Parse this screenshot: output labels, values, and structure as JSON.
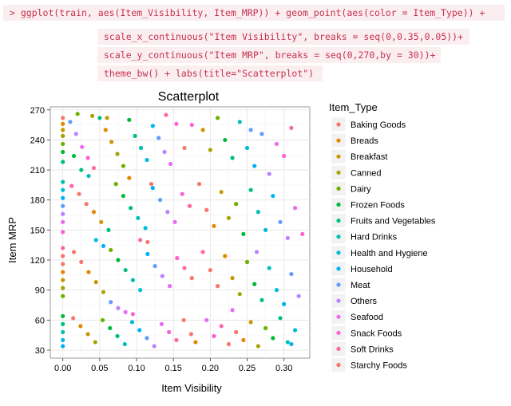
{
  "code": {
    "lines": [
      "> ggplot(train, aes(Item_Visibility, Item_MRP)) + geom_point(aes(color = Item_Type)) +",
      "scale_x_continuous(\"Item Visibility\", breaks = seq(0,0.35,0.05))+",
      "scale_y_continuous(\"Item MRP\", breaks = seq(0,270,by = 30))+",
      "theme_bw() + labs(title=\"Scatterplot\")"
    ]
  },
  "chart_data": {
    "type": "scatter",
    "title": "Scatterplot",
    "xlabel": "Item Visibility",
    "ylabel": "Item MRP",
    "xlim": [
      -0.017,
      0.335
    ],
    "ylim": [
      22,
      273
    ],
    "xticks": [
      0.0,
      0.05,
      0.1,
      0.15,
      0.2,
      0.25,
      0.3
    ],
    "xtick_labels": [
      "0.00",
      "0.05",
      "0.10",
      "0.15",
      "0.20",
      "0.25",
      "0.30"
    ],
    "yticks": [
      30,
      60,
      90,
      120,
      150,
      180,
      210,
      240,
      270
    ],
    "ytick_labels": [
      "30",
      "60",
      "90",
      "120",
      "150",
      "180",
      "210",
      "240",
      "270"
    ],
    "grid": true,
    "legend_position": "right",
    "legend_title": "Item_Type",
    "series": [
      {
        "name": "Baking Goods",
        "color": "#F8766D"
      },
      {
        "name": "Breads",
        "color": "#E58700"
      },
      {
        "name": "Breakfast",
        "color": "#C99800"
      },
      {
        "name": "Canned",
        "color": "#A3A500"
      },
      {
        "name": "Dairy",
        "color": "#6BB100"
      },
      {
        "name": "Frozen Foods",
        "color": "#00BA38"
      },
      {
        "name": "Fruits and Vegetables",
        "color": "#00BF7D"
      },
      {
        "name": "Hard Drinks",
        "color": "#00C0AF"
      },
      {
        "name": "Health and Hygiene",
        "color": "#00BCD8"
      },
      {
        "name": "Household",
        "color": "#00B0F6"
      },
      {
        "name": "Meat",
        "color": "#619CFF"
      },
      {
        "name": "Others",
        "color": "#B983FF"
      },
      {
        "name": "Seafood",
        "color": "#E76BF3"
      },
      {
        "name": "Snack Foods",
        "color": "#FD61D1"
      },
      {
        "name": "Soft Drinks",
        "color": "#FF67A4"
      },
      {
        "name": "Starchy Foods",
        "color": "#F8766D"
      }
    ],
    "points": [
      [
        0.0,
        262,
        0
      ],
      [
        0.0,
        256,
        1
      ],
      [
        0.0,
        250,
        2
      ],
      [
        0.0,
        244,
        3
      ],
      [
        0.0,
        236,
        4
      ],
      [
        0.0,
        228,
        5
      ],
      [
        0.0,
        218,
        6
      ],
      [
        0.0,
        198,
        7
      ],
      [
        0.0,
        190,
        8
      ],
      [
        0.0,
        182,
        9
      ],
      [
        0.0,
        174,
        10
      ],
      [
        0.0,
        166,
        11
      ],
      [
        0.0,
        158,
        12
      ],
      [
        0.0,
        148,
        13
      ],
      [
        0.0,
        132,
        14
      ],
      [
        0.0,
        124,
        15
      ],
      [
        0.0,
        116,
        0
      ],
      [
        0.0,
        108,
        1
      ],
      [
        0.0,
        100,
        2
      ],
      [
        0.0,
        92,
        3
      ],
      [
        0.0,
        84,
        4
      ],
      [
        0.0,
        64,
        5
      ],
      [
        0.0,
        56,
        6
      ],
      [
        0.0,
        48,
        7
      ],
      [
        0.0,
        40,
        8
      ],
      [
        0.0,
        34,
        9
      ],
      [
        0.01,
        258,
        10
      ],
      [
        0.018,
        246,
        11
      ],
      [
        0.026,
        233,
        12
      ],
      [
        0.034,
        222,
        13
      ],
      [
        0.042,
        212,
        14
      ],
      [
        0.05,
        262,
        6
      ],
      [
        0.058,
        250,
        1
      ],
      [
        0.066,
        238,
        2
      ],
      [
        0.074,
        226,
        3
      ],
      [
        0.082,
        214,
        4
      ],
      [
        0.09,
        260,
        5
      ],
      [
        0.098,
        244,
        6
      ],
      [
        0.106,
        232,
        7
      ],
      [
        0.114,
        220,
        8
      ],
      [
        0.122,
        254,
        9
      ],
      [
        0.13,
        242,
        10
      ],
      [
        0.138,
        228,
        11
      ],
      [
        0.146,
        216,
        12
      ],
      [
        0.154,
        256,
        13
      ],
      [
        0.012,
        194,
        14
      ],
      [
        0.022,
        186,
        15
      ],
      [
        0.032,
        176,
        0
      ],
      [
        0.042,
        168,
        1
      ],
      [
        0.052,
        158,
        2
      ],
      [
        0.062,
        150,
        6
      ],
      [
        0.072,
        196,
        4
      ],
      [
        0.082,
        184,
        5
      ],
      [
        0.092,
        172,
        6
      ],
      [
        0.102,
        162,
        7
      ],
      [
        0.112,
        152,
        8
      ],
      [
        0.122,
        192,
        9
      ],
      [
        0.132,
        180,
        10
      ],
      [
        0.142,
        168,
        11
      ],
      [
        0.152,
        158,
        12
      ],
      [
        0.162,
        186,
        13
      ],
      [
        0.172,
        174,
        14
      ],
      [
        0.015,
        128,
        15
      ],
      [
        0.025,
        118,
        0
      ],
      [
        0.035,
        108,
        1
      ],
      [
        0.045,
        98,
        2
      ],
      [
        0.055,
        88,
        3
      ],
      [
        0.065,
        130,
        4
      ],
      [
        0.075,
        120,
        5
      ],
      [
        0.085,
        110,
        6
      ],
      [
        0.095,
        100,
        7
      ],
      [
        0.105,
        90,
        8
      ],
      [
        0.115,
        126,
        9
      ],
      [
        0.125,
        114,
        10
      ],
      [
        0.135,
        104,
        11
      ],
      [
        0.145,
        94,
        12
      ],
      [
        0.155,
        122,
        13
      ],
      [
        0.165,
        112,
        14
      ],
      [
        0.175,
        102,
        15
      ],
      [
        0.014,
        62,
        0
      ],
      [
        0.024,
        54,
        1
      ],
      [
        0.034,
        46,
        2
      ],
      [
        0.044,
        38,
        3
      ],
      [
        0.054,
        60,
        4
      ],
      [
        0.064,
        52,
        5
      ],
      [
        0.074,
        44,
        6
      ],
      [
        0.084,
        36,
        7
      ],
      [
        0.094,
        58,
        8
      ],
      [
        0.104,
        50,
        9
      ],
      [
        0.114,
        42,
        10
      ],
      [
        0.124,
        34,
        11
      ],
      [
        0.134,
        56,
        12
      ],
      [
        0.144,
        48,
        13
      ],
      [
        0.154,
        40,
        14
      ],
      [
        0.164,
        60,
        15
      ],
      [
        0.174,
        46,
        0
      ],
      [
        0.18,
        38,
        1
      ],
      [
        0.19,
        250,
        2
      ],
      [
        0.2,
        230,
        3
      ],
      [
        0.21,
        262,
        4
      ],
      [
        0.22,
        240,
        5
      ],
      [
        0.23,
        222,
        6
      ],
      [
        0.24,
        258,
        7
      ],
      [
        0.25,
        232,
        8
      ],
      [
        0.26,
        214,
        9
      ],
      [
        0.27,
        246,
        10
      ],
      [
        0.28,
        206,
        11
      ],
      [
        0.29,
        236,
        12
      ],
      [
        0.3,
        224,
        13
      ],
      [
        0.31,
        252,
        14
      ],
      [
        0.185,
        196,
        15
      ],
      [
        0.195,
        170,
        0
      ],
      [
        0.205,
        154,
        1
      ],
      [
        0.215,
        188,
        2
      ],
      [
        0.225,
        162,
        3
      ],
      [
        0.235,
        176,
        4
      ],
      [
        0.245,
        146,
        5
      ],
      [
        0.255,
        190,
        6
      ],
      [
        0.265,
        168,
        7
      ],
      [
        0.275,
        150,
        8
      ],
      [
        0.285,
        184,
        9
      ],
      [
        0.295,
        158,
        10
      ],
      [
        0.305,
        142,
        11
      ],
      [
        0.315,
        172,
        12
      ],
      [
        0.325,
        146,
        13
      ],
      [
        0.19,
        128,
        14
      ],
      [
        0.2,
        110,
        15
      ],
      [
        0.21,
        94,
        0
      ],
      [
        0.22,
        124,
        1
      ],
      [
        0.23,
        102,
        2
      ],
      [
        0.24,
        86,
        3
      ],
      [
        0.25,
        118,
        4
      ],
      [
        0.26,
        96,
        5
      ],
      [
        0.27,
        80,
        6
      ],
      [
        0.28,
        112,
        7
      ],
      [
        0.29,
        90,
        8
      ],
      [
        0.3,
        76,
        9
      ],
      [
        0.31,
        106,
        10
      ],
      [
        0.32,
        84,
        11
      ],
      [
        0.195,
        60,
        12
      ],
      [
        0.205,
        44,
        13
      ],
      [
        0.215,
        54,
        14
      ],
      [
        0.225,
        36,
        15
      ],
      [
        0.235,
        48,
        0
      ],
      [
        0.245,
        40,
        1
      ],
      [
        0.255,
        58,
        2
      ],
      [
        0.265,
        34,
        3
      ],
      [
        0.275,
        52,
        4
      ],
      [
        0.285,
        42,
        5
      ],
      [
        0.295,
        62,
        6
      ],
      [
        0.305,
        38,
        7
      ],
      [
        0.315,
        50,
        8
      ],
      [
        0.31,
        36,
        9
      ],
      [
        0.255,
        250,
        10
      ],
      [
        0.263,
        128,
        11
      ],
      [
        0.23,
        70,
        12
      ],
      [
        0.175,
        255,
        13
      ],
      [
        0.14,
        265,
        14
      ],
      [
        0.165,
        232,
        15
      ],
      [
        0.12,
        196,
        0
      ],
      [
        0.09,
        202,
        1
      ],
      [
        0.06,
        262,
        2
      ],
      [
        0.04,
        264,
        3
      ],
      [
        0.02,
        266,
        4
      ],
      [
        0.015,
        224,
        5
      ],
      [
        0.025,
        210,
        6
      ],
      [
        0.035,
        204,
        7
      ],
      [
        0.045,
        140,
        8
      ],
      [
        0.055,
        134,
        9
      ],
      [
        0.065,
        78,
        10
      ],
      [
        0.075,
        72,
        11
      ],
      [
        0.085,
        68,
        12
      ],
      [
        0.095,
        66,
        13
      ],
      [
        0.105,
        140,
        14
      ],
      [
        0.115,
        138,
        15
      ]
    ]
  }
}
